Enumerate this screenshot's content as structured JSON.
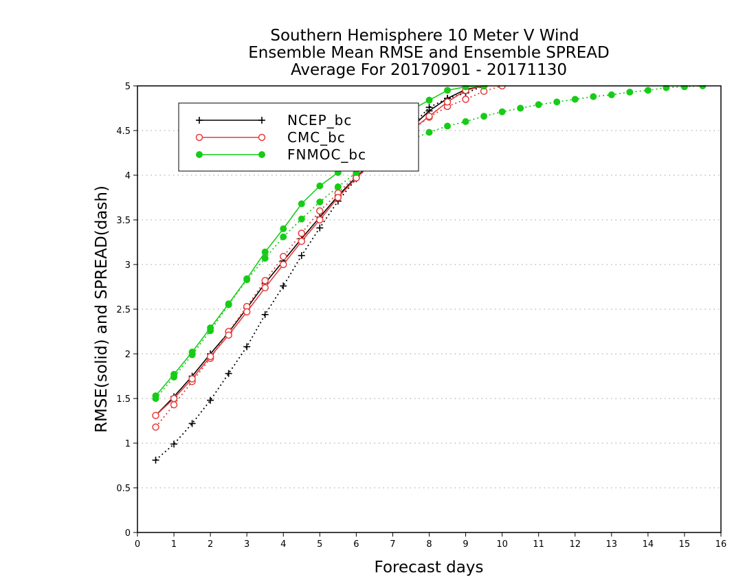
{
  "chart_data": {
    "type": "line",
    "title_lines": [
      "Southern Hemisphere 10 Meter V Wind",
      "Ensemble Mean RMSE and Ensemble SPREAD",
      "Average For 20170901 - 20171130"
    ],
    "xlabel": "Forecast days",
    "ylabel": "RMSE(solid) and SPREAD(dash)",
    "xlim": [
      0,
      16
    ],
    "ylim": [
      0,
      5
    ],
    "x_ticks": [
      "0",
      "1",
      "2",
      "3",
      "4",
      "5",
      "6",
      "7",
      "8",
      "9",
      "10",
      "11",
      "12",
      "13",
      "14",
      "15",
      "16"
    ],
    "y_ticks": [
      "0",
      "0.5",
      "1",
      "1.5",
      "2",
      "2.5",
      "3",
      "3.5",
      "4",
      "4.5",
      "5"
    ],
    "grid": "horizontal dotted",
    "legend_position": "top-left",
    "series": [
      {
        "name": "NCEP_bc",
        "color": "#000000",
        "marker": "plus",
        "rmse": {
          "x": [
            0.5,
            1,
            1.5,
            2,
            2.5,
            3,
            3.5,
            4,
            4.5,
            5,
            5.5,
            6,
            6.5,
            7,
            7.5,
            8,
            8.5,
            9,
            9.5
          ],
          "y": [
            1.31,
            1.52,
            1.75,
            2.0,
            2.24,
            2.51,
            2.79,
            3.04,
            3.29,
            3.53,
            3.77,
            3.98,
            4.17,
            4.35,
            4.53,
            4.72,
            4.86,
            4.96,
            5.0
          ]
        },
        "spread": {
          "x": [
            0.5,
            1,
            1.5,
            2,
            2.5,
            3,
            3.5,
            4,
            4.5,
            5,
            5.5,
            6,
            6.5,
            7,
            7.5,
            8,
            8.5,
            9,
            9.5
          ],
          "y": [
            0.81,
            0.99,
            1.22,
            1.48,
            1.78,
            2.08,
            2.44,
            2.76,
            3.1,
            3.41,
            3.71,
            3.96,
            4.17,
            4.36,
            4.54,
            4.76,
            4.86,
            4.92,
            5.0
          ]
        }
      },
      {
        "name": "CMC_bc",
        "color": "#e83a3a",
        "marker": "circle",
        "rmse": {
          "x": [
            0.5,
            1,
            1.5,
            2,
            2.5,
            3,
            3.5,
            4,
            4.5,
            5,
            5.5,
            6,
            6.5,
            7,
            7.5,
            8,
            8.5,
            9,
            9.5
          ],
          "y": [
            1.31,
            1.5,
            1.72,
            1.97,
            2.21,
            2.47,
            2.74,
            3.0,
            3.26,
            3.5,
            3.75,
            3.97,
            4.16,
            4.33,
            4.5,
            4.66,
            4.82,
            4.95,
            5.0
          ]
        },
        "spread": {
          "x": [
            0.5,
            1,
            1.5,
            2,
            2.5,
            3,
            3.5,
            4,
            4.5,
            5,
            5.5,
            6,
            6.5,
            7,
            7.5,
            8,
            8.5,
            9,
            9.5,
            10
          ],
          "y": [
            1.18,
            1.43,
            1.69,
            1.95,
            2.25,
            2.53,
            2.82,
            3.09,
            3.35,
            3.6,
            3.8,
            4.0,
            4.18,
            4.34,
            4.5,
            4.65,
            4.77,
            4.85,
            4.94,
            5.0
          ]
        }
      },
      {
        "name": "FNMOC_bc",
        "color": "#17cc17",
        "marker": "dot",
        "rmse": {
          "x": [
            0.5,
            1,
            1.5,
            2,
            2.5,
            3,
            3.5,
            4,
            4.5,
            5,
            5.5,
            6,
            6.5,
            7,
            7.5,
            8,
            8.5,
            9,
            9.5
          ],
          "y": [
            1.53,
            1.77,
            2.02,
            2.29,
            2.56,
            2.84,
            3.14,
            3.4,
            3.68,
            3.88,
            4.03,
            4.16,
            4.38,
            4.56,
            4.73,
            4.84,
            4.95,
            4.99,
            5.0
          ]
        },
        "spread": {
          "x": [
            0.5,
            1,
            1.5,
            2,
            2.5,
            3,
            3.5,
            4,
            4.5,
            5,
            5.5,
            6,
            6.5,
            7,
            7.5,
            8,
            8.5,
            9,
            9.5,
            10,
            10.5,
            11,
            11.5,
            12,
            12.5,
            13,
            13.5,
            14,
            14.5,
            15,
            15.5
          ],
          "y": [
            1.5,
            1.74,
            1.99,
            2.26,
            2.55,
            2.83,
            3.07,
            3.31,
            3.51,
            3.7,
            3.87,
            4.03,
            4.17,
            4.3,
            4.4,
            4.48,
            4.55,
            4.6,
            4.66,
            4.71,
            4.75,
            4.79,
            4.82,
            4.85,
            4.88,
            4.9,
            4.93,
            4.95,
            4.98,
            4.99,
            5.0
          ]
        }
      }
    ]
  }
}
